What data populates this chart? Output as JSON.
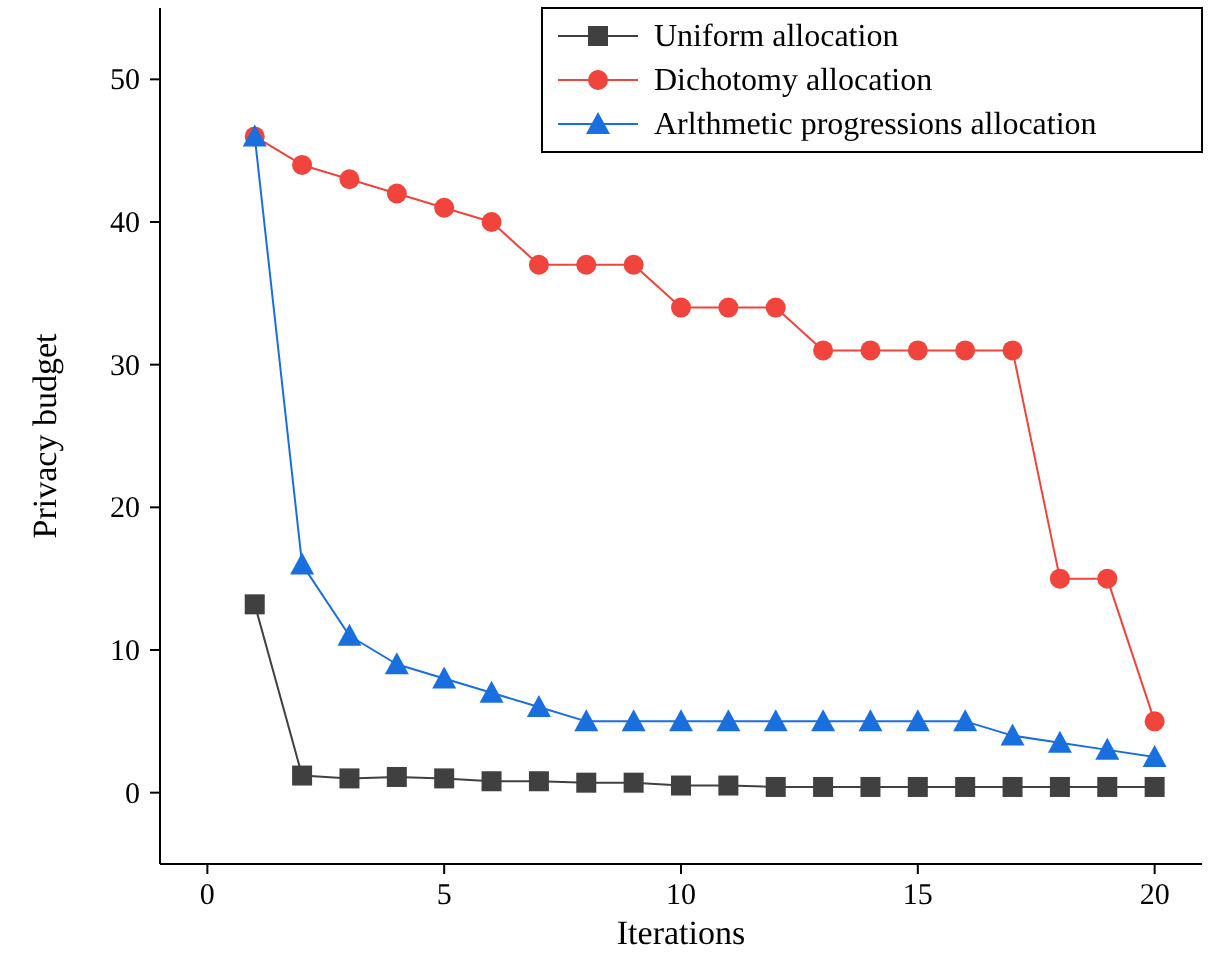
{
  "chart_data": {
    "type": "line",
    "xlabel": "Iterations",
    "ylabel": "Privacy budget",
    "x": [
      1,
      2,
      3,
      4,
      5,
      6,
      7,
      8,
      9,
      10,
      11,
      12,
      13,
      14,
      15,
      16,
      17,
      18,
      19,
      20
    ],
    "xlim": [
      -1,
      21
    ],
    "xticks": [
      0,
      5,
      10,
      15,
      20
    ],
    "ylim": [
      -5,
      55
    ],
    "yticks": [
      0,
      10,
      20,
      30,
      40,
      50
    ],
    "grid": false,
    "legend": "top right",
    "series": [
      {
        "name": "Uniform allocation",
        "color": "#404040",
        "marker": "square",
        "values": [
          13.2,
          1.2,
          1.0,
          1.1,
          1.0,
          0.8,
          0.8,
          0.7,
          0.7,
          0.5,
          0.5,
          0.4,
          0.4,
          0.4,
          0.4,
          0.4,
          0.4,
          0.4,
          0.4,
          0.4
        ]
      },
      {
        "name": "Dichotomy allocation",
        "color": "#f0443c",
        "marker": "circle",
        "values": [
          46,
          44,
          43,
          42,
          41,
          40,
          37,
          37,
          37,
          34,
          34,
          34,
          31,
          31,
          31,
          31,
          31,
          15,
          15,
          5
        ]
      },
      {
        "name": "Arlthmetic progressions allocation",
        "color": "#1a6fdf",
        "marker": "triangle",
        "values": [
          46,
          16,
          11,
          9,
          8,
          7,
          6,
          5,
          5,
          5,
          5,
          5,
          5,
          5,
          5,
          5,
          4,
          3.5,
          3,
          2.5
        ]
      }
    ]
  }
}
